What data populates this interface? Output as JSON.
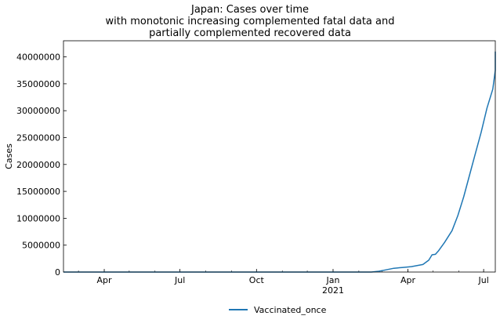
{
  "chart_data": {
    "type": "line",
    "title_lines": [
      "Japan: Cases over time",
      "with monotonic increasing complemented fatal data and",
      "partially complemented recovered data"
    ],
    "xlabel": "",
    "ylabel": "Cases",
    "x_type": "date",
    "xlim": [
      "2020-02-12",
      "2021-07-15"
    ],
    "ylim": [
      0,
      43000000
    ],
    "x_ticks": [
      {
        "date": "2020-04-01",
        "label": "Apr",
        "sub": ""
      },
      {
        "date": "2020-07-01",
        "label": "Jul",
        "sub": ""
      },
      {
        "date": "2020-10-01",
        "label": "Oct",
        "sub": ""
      },
      {
        "date": "2021-01-01",
        "label": "Jan",
        "sub": "2021"
      },
      {
        "date": "2021-04-01",
        "label": "Apr",
        "sub": ""
      },
      {
        "date": "2021-07-01",
        "label": "Jul",
        "sub": ""
      }
    ],
    "y_ticks": [
      0,
      5000000,
      10000000,
      15000000,
      20000000,
      25000000,
      30000000,
      35000000,
      40000000
    ],
    "grid": false,
    "legend_position": "bottom-center",
    "series": [
      {
        "name": "Vaccinated_once",
        "color": "#1f77b4",
        "points": [
          [
            "2020-02-12",
            0
          ],
          [
            "2021-02-16",
            0
          ],
          [
            "2021-02-25",
            150000
          ],
          [
            "2021-03-05",
            400000
          ],
          [
            "2021-03-15",
            700000
          ],
          [
            "2021-03-25",
            850000
          ],
          [
            "2021-04-05",
            1000000
          ],
          [
            "2021-04-12",
            1200000
          ],
          [
            "2021-04-19",
            1400000
          ],
          [
            "2021-04-26",
            2200000
          ],
          [
            "2021-04-30",
            3200000
          ],
          [
            "2021-05-04",
            3300000
          ],
          [
            "2021-05-08",
            4000000
          ],
          [
            "2021-05-15",
            5500000
          ],
          [
            "2021-05-24",
            7700000
          ],
          [
            "2021-05-31",
            10500000
          ],
          [
            "2021-06-07",
            14000000
          ],
          [
            "2021-06-14",
            18000000
          ],
          [
            "2021-06-21",
            22000000
          ],
          [
            "2021-06-28",
            26000000
          ],
          [
            "2021-07-05",
            30500000
          ],
          [
            "2021-07-12",
            34000000
          ],
          [
            "2021-07-19",
            37500000
          ],
          [
            "2021-07-24",
            40500000
          ],
          [
            "2021-07-27",
            41000000
          ]
        ]
      }
    ]
  }
}
